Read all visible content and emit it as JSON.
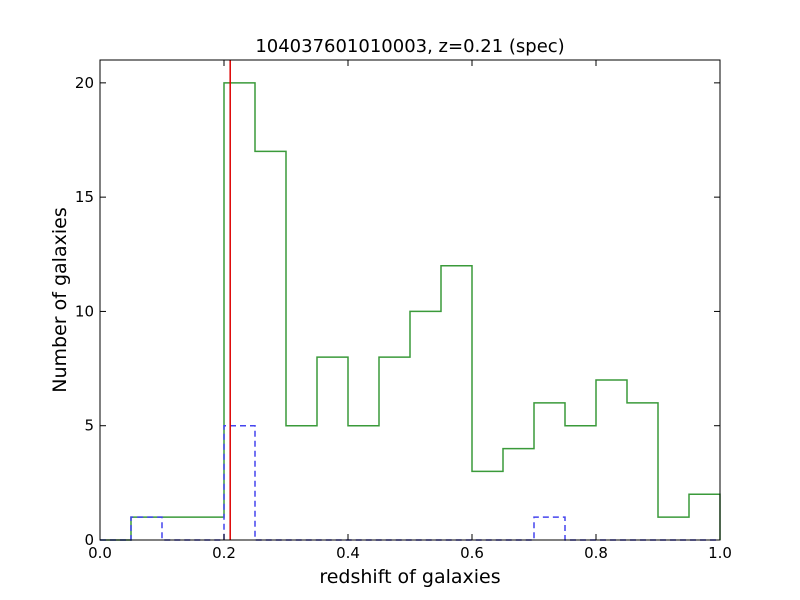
{
  "chart_data": {
    "type": "histogram",
    "title": "104037601010003, z=0.21 (spec)",
    "xlabel": "redshift of galaxies",
    "ylabel": "Number of galaxies",
    "xlim": [
      0.0,
      1.0
    ],
    "ylim": [
      0,
      21
    ],
    "grid": false,
    "x_ticks": [
      "0.0",
      "0.2",
      "0.4",
      "0.6",
      "0.8",
      "1.0"
    ],
    "y_ticks": [
      "0",
      "5",
      "10",
      "15",
      "20"
    ],
    "bin_edges": [
      0.0,
      0.05,
      0.1,
      0.15,
      0.2,
      0.25,
      0.3,
      0.35,
      0.4,
      0.45,
      0.5,
      0.55,
      0.6,
      0.65,
      0.7,
      0.75,
      0.8,
      0.85,
      0.9,
      0.95,
      1.0
    ],
    "series": [
      {
        "style": "solid",
        "color": "#3a9a3a",
        "values": [
          0,
          1,
          1,
          1,
          20,
          17,
          5,
          8,
          5,
          8,
          10,
          12,
          3,
          4,
          6,
          5,
          7,
          6,
          1,
          2
        ]
      },
      {
        "style": "dashed",
        "color": "#4444ee",
        "values": [
          0,
          1,
          0,
          0,
          5,
          0,
          0,
          0,
          0,
          0,
          0,
          0,
          0,
          0,
          1,
          0,
          0,
          0,
          0,
          0
        ]
      }
    ],
    "vline": {
      "x": 0.21,
      "color": "#dd0000"
    }
  }
}
